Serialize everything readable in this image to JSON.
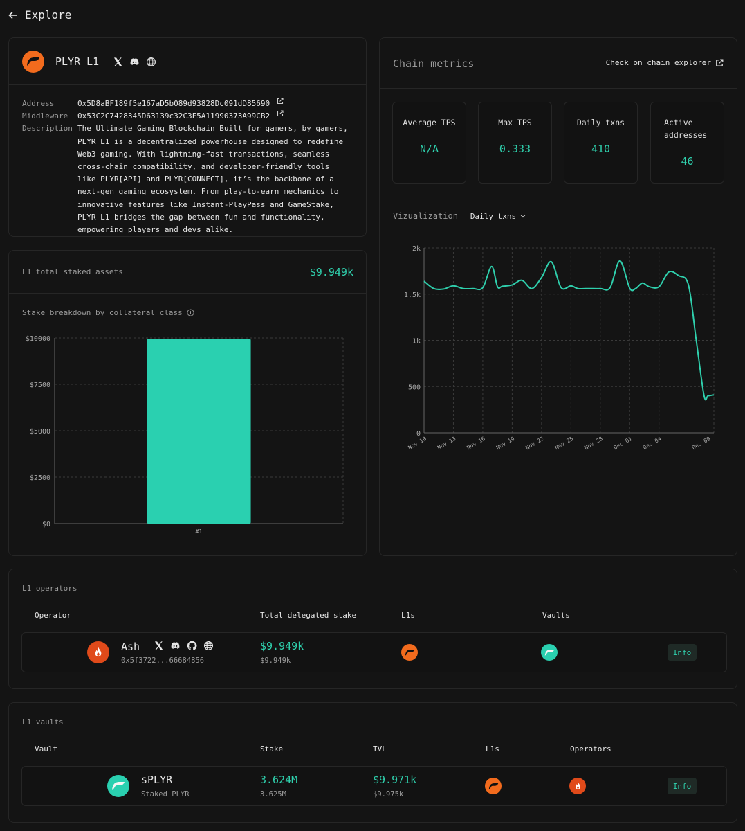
{
  "nav": {
    "back_label": "Explore"
  },
  "l1": {
    "name": "PLYR L1",
    "address_label": "Address",
    "address": "0x5D8aBF189f5e167aD5b089d93828Dc091dD85690",
    "middleware_label": "Middleware",
    "middleware": "0x53C2C7428345D63139c32C3F5A11990373A99CB2",
    "description_label": "Description",
    "description": "The Ultimate Gaming Blockchain Built for gamers, by gamers, PLYR L1 is a decentralized powerhouse designed to redefine Web3 gaming. With lightning-fast transactions, seamless cross-chain compatibility, and developer-friendly tools like PLYR[API] and PLYR[CONNECT], it’s the backbone of a next-gen gaming ecosystem. From play-to-earn mechanics to innovative features like Instant-PlayPass and GameStake, PLYR L1 bridges the gap between fun and functionality, empowering players and devs alike.",
    "brand_color": "#f26b1d"
  },
  "staked": {
    "title": "L1 total staked assets",
    "total": "$9.949k",
    "breakdown_title": "Stake breakdown by collateral class"
  },
  "metrics": {
    "title": "Chain metrics",
    "explorer_link": "Check on chain explorer",
    "cards": [
      {
        "label": "Average TPS",
        "value": "N/A"
      },
      {
        "label": "Max TPS",
        "value": "0.333"
      },
      {
        "label": "Daily txns",
        "value": "410"
      },
      {
        "label": "Active addresses",
        "value": "46"
      }
    ],
    "viz_label": "Vizualization",
    "viz_select": "Daily txns"
  },
  "operators": {
    "title": "L1 operators",
    "headers": [
      "Operator",
      "Total delegated stake",
      "L1s",
      "Vaults"
    ],
    "rows": [
      {
        "name": "Ash",
        "address": "0x5f3722...66684856",
        "stake": "$9.949k",
        "stake_sub": "$9.949k",
        "action": "Info"
      }
    ]
  },
  "vaults": {
    "title": "L1 vaults",
    "headers": [
      "Vault",
      "Stake",
      "TVL",
      "L1s",
      "Operators"
    ],
    "rows": [
      {
        "name": "sPLYR",
        "subtitle": "Staked PLYR",
        "stake": "3.624M",
        "stake_sub": "3.625M",
        "tvl": "$9.971k",
        "tvl_sub": "$9.975k",
        "action": "Info"
      }
    ]
  },
  "chart_data": [
    {
      "type": "bar",
      "title": "Stake breakdown by collateral class",
      "categories": [
        "#1"
      ],
      "values": [
        9949
      ],
      "ylim": [
        0,
        10000
      ],
      "yticks": [
        0,
        2500,
        5000,
        7500,
        10000
      ],
      "ytick_labels": [
        "$0",
        "$2500",
        "$5000",
        "$7500",
        "$10000"
      ],
      "grid": true,
      "color": "#2ad0b0"
    },
    {
      "type": "line",
      "title": "Daily txns",
      "ylim": [
        0,
        2000
      ],
      "yticks": [
        0,
        500,
        1000,
        1500,
        2000
      ],
      "ytick_labels": [
        "0",
        "500",
        "1k",
        "1.5k",
        "2k"
      ],
      "xtick_labels": [
        "Nov 10",
        "Nov 13",
        "Nov 16",
        "Nov 19",
        "Nov 22",
        "Nov 25",
        "Nov 28",
        "Dec 01",
        "Dec 04",
        "Dec 09"
      ],
      "xtick_days": [
        0,
        3,
        6,
        9,
        12,
        15,
        18,
        21,
        24,
        29
      ],
      "x_days": [
        0,
        1,
        2,
        3,
        4,
        5,
        6,
        6.9,
        7.5,
        8,
        9,
        10,
        11,
        12,
        13,
        14,
        15,
        15.7,
        16.5,
        17,
        18,
        19,
        20,
        21,
        21.6,
        22.3,
        23,
        24,
        25,
        26,
        27,
        27.8,
        28.6,
        29,
        29.6
      ],
      "values": [
        1640,
        1560,
        1555,
        1590,
        1560,
        1560,
        1570,
        1800,
        1580,
        1585,
        1600,
        1650,
        1560,
        1680,
        1850,
        1570,
        1590,
        1560,
        1560,
        1560,
        1560,
        1570,
        1860,
        1565,
        1560,
        1620,
        1580,
        1580,
        1740,
        1700,
        1600,
        1000,
        400,
        400,
        410
      ],
      "grid": true,
      "color": "#2fd0ad"
    }
  ]
}
